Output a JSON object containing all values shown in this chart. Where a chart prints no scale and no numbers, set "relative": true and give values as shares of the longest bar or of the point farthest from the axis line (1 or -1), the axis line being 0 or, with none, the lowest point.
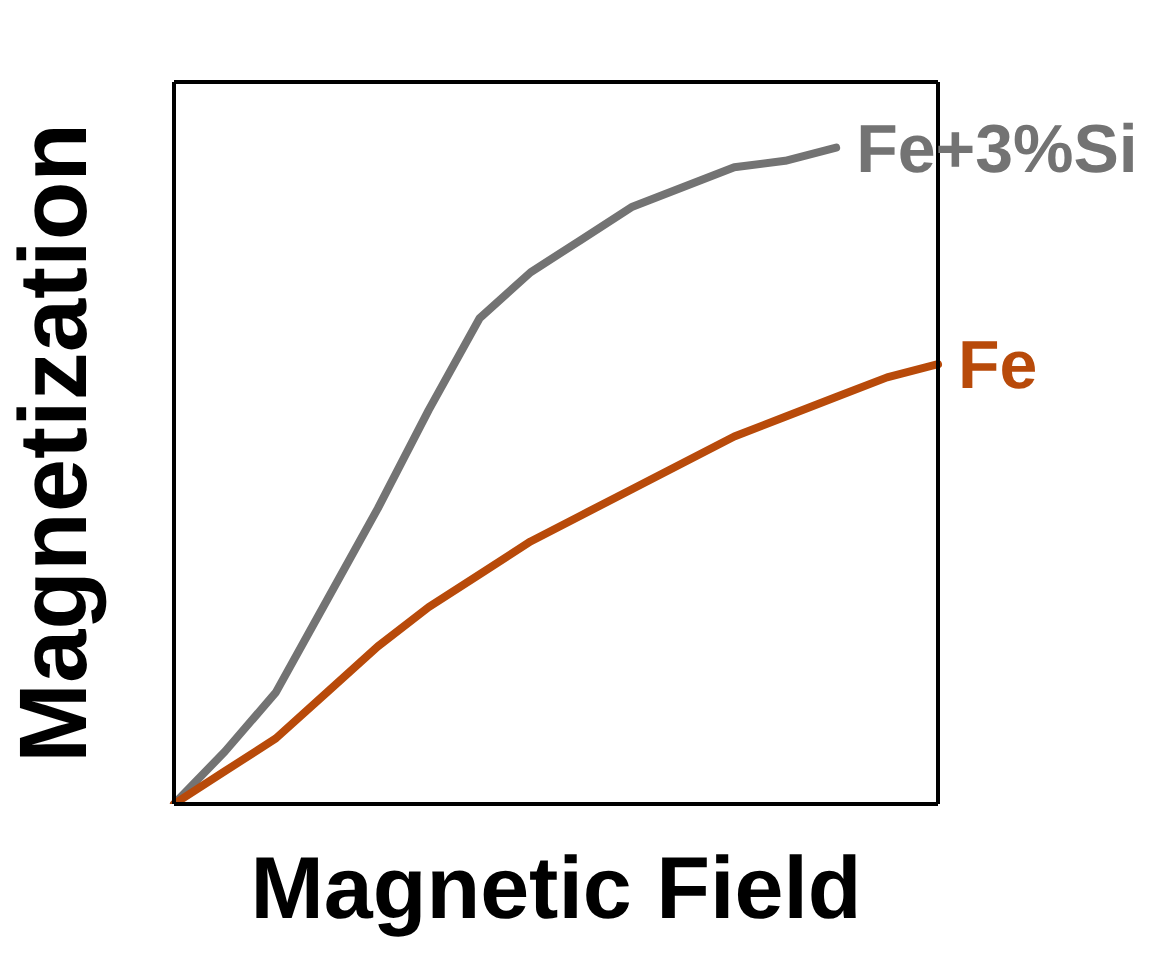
{
  "chart_data": {
    "type": "line",
    "relative": true,
    "xlabel": "Magnetic Field",
    "ylabel": "Magnetization",
    "categories": [
      null,
      null,
      null,
      null,
      null,
      null,
      null,
      null,
      null,
      null,
      null,
      null,
      null,
      null,
      null,
      null
    ],
    "series": [
      {
        "name": "Fe+3%Si",
        "color": "#737373",
        "values": [
          0,
          0.08,
          0.17,
          0.31,
          0.45,
          0.6,
          0.74,
          0.81,
          0.86,
          0.91,
          0.94,
          0.97,
          0.98,
          1,
          null,
          null
        ]
      },
      {
        "name": "Fe",
        "color": "#b84a0a",
        "values": [
          0,
          0.05,
          0.1,
          0.17,
          0.24,
          0.3,
          0.35,
          0.4,
          0.44,
          0.48,
          0.52,
          0.56,
          0.59,
          0.62,
          0.65,
          0.67
        ]
      }
    ]
  }
}
